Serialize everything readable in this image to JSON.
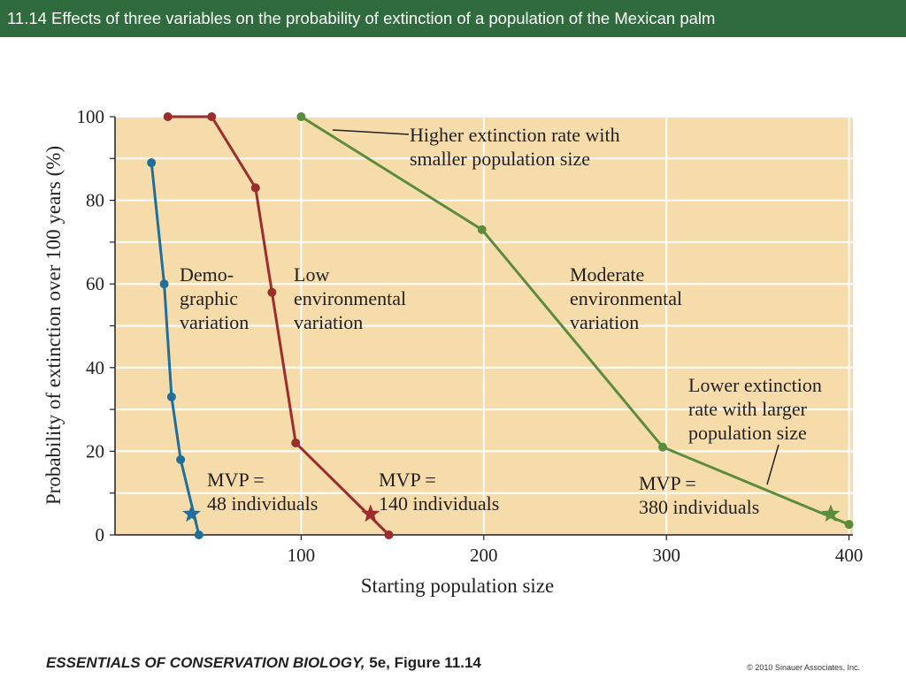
{
  "slide": {
    "title": "11.14  Effects of three variables on the probability of extinction of a population of the Mexican palm",
    "footer_book": "ESSENTIALS OF CONSERVATION BIOLOGY,",
    "footer_figure": " 5e, Figure 11.14",
    "footer_copyright": "© 2010 Sinauer Associates, Inc."
  },
  "colors": {
    "title_bar": "#2f6b3d",
    "plot_bg": "#f5dcaa",
    "demographic": "#1f6e9c",
    "low_env": "#9b2d2d",
    "moderate_env": "#5a8c3c"
  },
  "chart_data": {
    "type": "line",
    "xlabel": "Starting population size",
    "ylabel": "Probability of extinction over 100 years (%)",
    "xlim": [
      0,
      400
    ],
    "ylim": [
      0,
      100
    ],
    "xticks": [
      100,
      200,
      300,
      400
    ],
    "yticks": [
      0,
      20,
      40,
      60,
      80,
      100
    ],
    "grid": "horizontal",
    "series": [
      {
        "name": "Demographic variation",
        "label_lines": [
          "Demo-",
          "graphic",
          "variation"
        ],
        "color": "#1f6e9c",
        "points": [
          [
            18,
            89
          ],
          [
            25,
            60
          ],
          [
            29,
            33
          ],
          [
            34,
            18
          ],
          [
            44,
            0
          ]
        ],
        "mvp": {
          "x": 40,
          "y": 5,
          "label_lines": [
            "MVP =",
            "48 individuals"
          ]
        }
      },
      {
        "name": "Low environmental variation",
        "label_lines": [
          "Low",
          "environmental",
          "variation"
        ],
        "color": "#9b2d2d",
        "points": [
          [
            27,
            100
          ],
          [
            51,
            100
          ],
          [
            75,
            83
          ],
          [
            84,
            58
          ],
          [
            97,
            22
          ],
          [
            148,
            0
          ]
        ],
        "mvp": {
          "x": 138,
          "y": 5,
          "label_lines": [
            "MVP =",
            "140 individuals"
          ]
        }
      },
      {
        "name": "Moderate environmental variation",
        "label_lines": [
          "Moderate",
          "environmental",
          "variation"
        ],
        "color": "#5a8c3c",
        "points": [
          [
            100,
            100
          ],
          [
            199,
            73
          ],
          [
            298,
            21
          ],
          [
            400,
            2.5
          ]
        ],
        "mvp": {
          "x": 390,
          "y": 5,
          "label_lines": [
            "MVP =",
            "380 individuals"
          ]
        }
      }
    ],
    "annotations": [
      {
        "text_lines": [
          "Higher extinction rate with",
          "smaller population size"
        ]
      },
      {
        "text_lines": [
          "Lower extinction",
          "rate with larger",
          "population size"
        ]
      }
    ]
  }
}
